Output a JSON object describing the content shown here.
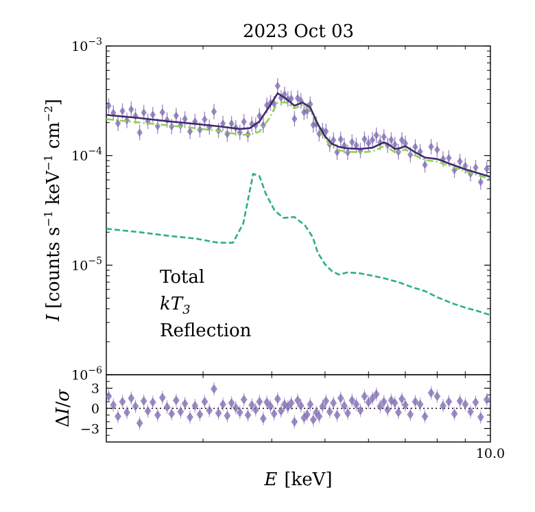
{
  "chart_data": [
    {
      "type": "line",
      "title": "2023 Oct 03",
      "xlabel": "E [keV]",
      "ylabel": "I [counts s−1 keV−1 cm−2]",
      "xscale": "log",
      "yscale": "log",
      "xlim": [
        2.0,
        10.0
      ],
      "ylim": [
        1e-06,
        0.001
      ],
      "yticks": [
        {
          "value": 1e-06,
          "base": "10",
          "exp": "−6"
        },
        {
          "value": 1e-05,
          "base": "10",
          "exp": "−5"
        },
        {
          "value": 0.0001,
          "base": "10",
          "exp": "−4"
        },
        {
          "value": 0.001,
          "base": "10",
          "exp": "−3"
        }
      ],
      "xticks": [
        {
          "value": 10.0,
          "label": "10.0"
        }
      ],
      "legend": {
        "placement": "lower-left",
        "entries": [
          {
            "label": "Total",
            "color": "#3f2a6b"
          },
          {
            "label": "kT3",
            "color": "#8fd14f"
          },
          {
            "label": "Reflection",
            "color": "#2ab07f"
          }
        ]
      },
      "series": [
        {
          "name": "Total",
          "style": "solid",
          "color": "#3f2a6b",
          "x": [
            2.0,
            2.3,
            2.6,
            2.9,
            3.2,
            3.5,
            3.65,
            3.8,
            3.95,
            4.1,
            4.25,
            4.4,
            4.55,
            4.7,
            4.85,
            5.0,
            5.15,
            5.3,
            5.45,
            5.6,
            5.8,
            6.1,
            6.4,
            6.55,
            6.7,
            6.85,
            7.0,
            7.3,
            7.6,
            8.0,
            8.5,
            9.0,
            9.5,
            10.0
          ],
          "y": [
            0.000235,
            0.00022,
            0.000205,
            0.000195,
            0.000185,
            0.000175,
            0.000178,
            0.000205,
            0.000275,
            0.00037,
            0.00033,
            0.000285,
            0.000305,
            0.000275,
            0.000195,
            0.00015,
            0.000128,
            0.00012,
            0.000117,
            0.000116,
            0.000115,
            0.000118,
            0.000132,
            0.000125,
            0.000115,
            0.000117,
            0.000122,
            0.000107,
            9.6e-05,
            9.3e-05,
            8.3e-05,
            7.5e-05,
            6.9e-05,
            6.4e-05
          ]
        },
        {
          "name": "kT3",
          "style": "dashdot",
          "color": "#8fd14f",
          "x": [
            2.0,
            2.3,
            2.6,
            2.9,
            3.2,
            3.5,
            3.65,
            3.8,
            3.95,
            4.1,
            4.25,
            4.4,
            4.55,
            4.7,
            4.85,
            5.0,
            5.15,
            5.3,
            5.45,
            5.6,
            5.8,
            6.1,
            6.4,
            6.55,
            6.7,
            6.85,
            7.0,
            7.3,
            7.6,
            8.0,
            8.5,
            9.0,
            9.5,
            10.0
          ],
          "y": [
            0.000215,
            0.0002,
            0.000188,
            0.000178,
            0.000168,
            0.000155,
            0.000155,
            0.000165,
            0.000215,
            0.000305,
            0.000305,
            0.00027,
            0.00029,
            0.00026,
            0.000185,
            0.000142,
            0.00012,
            0.000112,
            0.000109,
            0.000108,
            0.000107,
            0.000109,
            0.000122,
            0.000116,
            0.000107,
            0.000109,
            0.000114,
            0.0001,
            9.1e-05,
            8.8e-05,
            7.9e-05,
            7.2e-05,
            6.6e-05,
            6.1e-05
          ]
        },
        {
          "name": "Reflection",
          "style": "dashed",
          "color": "#2ab07f",
          "x": [
            2.0,
            2.3,
            2.6,
            2.9,
            3.2,
            3.4,
            3.55,
            3.7,
            3.8,
            3.9,
            4.05,
            4.2,
            4.4,
            4.6,
            4.75,
            4.85,
            5.0,
            5.15,
            5.3,
            5.5,
            5.8,
            6.1,
            6.4,
            6.8,
            7.2,
            7.6,
            8.0,
            8.5,
            9.0,
            9.5,
            10.0
          ],
          "y": [
            2.15e-05,
            2e-05,
            1.85e-05,
            1.75e-05,
            1.6e-05,
            1.6e-05,
            2.4e-05,
            6.8e-05,
            6.5e-05,
            4.5e-05,
            3.15e-05,
            2.7e-05,
            2.75e-05,
            2.3e-05,
            1.8e-05,
            1.3e-05,
            1.02e-05,
            8.8e-06,
            8.2e-06,
            8.6e-06,
            8.4e-06,
            8e-06,
            7.6e-06,
            7e-06,
            6.3e-06,
            5.8e-06,
            5.1e-06,
            4.5e-06,
            4.1e-06,
            3.8e-06,
            3.5e-06
          ]
        }
      ]
    },
    {
      "type": "scatter",
      "xlabel": "E [keV]",
      "ylabel": "ΔI/σ",
      "xscale": "log",
      "xlim": [
        2.0,
        10.0
      ],
      "ylim": [
        -5,
        5
      ],
      "yticks": [
        {
          "value": 3,
          "label": "3"
        },
        {
          "value": 0,
          "label": "0"
        },
        {
          "value": -3,
          "label": "−3"
        }
      ],
      "reference_line": {
        "y": 0,
        "style": "dotted"
      },
      "series": [
        {
          "name": "",
          "color": "#7b68b0",
          "x": [
            2.02,
            2.06,
            2.1,
            2.14,
            2.18,
            2.22,
            2.26,
            2.3,
            2.34,
            2.38,
            2.43,
            2.48,
            2.53,
            2.58,
            2.63,
            2.68,
            2.73,
            2.78,
            2.84,
            2.9,
            2.96,
            3.02,
            3.08,
            3.14,
            3.2,
            3.26,
            3.32,
            3.38,
            3.44,
            3.5,
            3.56,
            3.62,
            3.68,
            3.74,
            3.8,
            3.86,
            3.92,
            3.98,
            4.04,
            4.1,
            4.16,
            4.22,
            4.28,
            4.34,
            4.4,
            4.46,
            4.52,
            4.58,
            4.64,
            4.7,
            4.76,
            4.82,
            4.88,
            4.95,
            5.02,
            5.1,
            5.18,
            5.26,
            5.34,
            5.42,
            5.5,
            5.6,
            5.7,
            5.8,
            5.9,
            6.0,
            6.1,
            6.2,
            6.3,
            6.4,
            6.5,
            6.6,
            6.7,
            6.8,
            6.9,
            7.0,
            7.15,
            7.3,
            7.45,
            7.6,
            7.8,
            8.0,
            8.2,
            8.4,
            8.6,
            8.8,
            9.0,
            9.2,
            9.4,
            9.6,
            9.85
          ],
          "y": [
            1.8,
            0.5,
            -1.2,
            1.0,
            -0.6,
            1.5,
            0.3,
            -2.2,
            1.1,
            -0.4,
            0.9,
            -1.0,
            1.6,
            0.2,
            -0.8,
            1.2,
            -0.5,
            0.7,
            -1.3,
            0.4,
            -0.9,
            1.0,
            -0.3,
            2.9,
            -0.7,
            0.6,
            -1.1,
            0.8,
            0.1,
            -0.6,
            1.3,
            -1.0,
            0.5,
            -0.2,
            1.0,
            -1.5,
            0.9,
            0.3,
            -0.8,
            1.4,
            -0.4,
            0.6,
            0.2,
            0.8,
            -2.0,
            1.2,
            0.4,
            -1.4,
            -0.9,
            0.6,
            -1.7,
            -0.6,
            -1.2,
            0.3,
            1.1,
            -0.5,
            0.8,
            -1.0,
            1.5,
            0.4,
            -0.7,
            1.2,
            0.6,
            -0.3,
            1.8,
            0.9,
            1.5,
            2.1,
            0.3,
            1.0,
            -0.2,
            1.2,
            0.8,
            -0.6,
            1.4,
            0.5,
            -0.9,
            1.0,
            0.6,
            -1.2,
            2.3,
            1.8,
            0.4,
            1.0,
            -0.8,
            1.1,
            0.6,
            -0.5,
            0.9,
            -1.3,
            1.3
          ]
        }
      ]
    }
  ],
  "texts": {
    "title": "2023 Oct 03",
    "xlabel_main": "E",
    "xlabel_unit": "[keV]",
    "xtick_label": "10.0",
    "ylabel_italic": "I",
    "ylabel_open": "[counts s",
    "ylabel_s_exp": "−1",
    "ylabel_mid": " keV",
    "ylabel_kev_exp": "−1",
    "ylabel_cm": " cm",
    "ylabel_cm_exp": "−2",
    "ylabel_close": "]",
    "res_ylabel_delta": "Δ",
    "res_ylabel_italic": "I",
    "res_ylabel_slash": "/",
    "res_ylabel_sigma": "σ",
    "legend_total": "Total",
    "legend_kt3_base": "kT",
    "legend_kt3_sub": "3",
    "legend_reflection": "Reflection"
  },
  "colors": {
    "total": "#3f2a6b",
    "kt3": "#8fd14f",
    "reflection": "#2ab07f",
    "data": "#7b68b0",
    "axes": "#000000"
  }
}
